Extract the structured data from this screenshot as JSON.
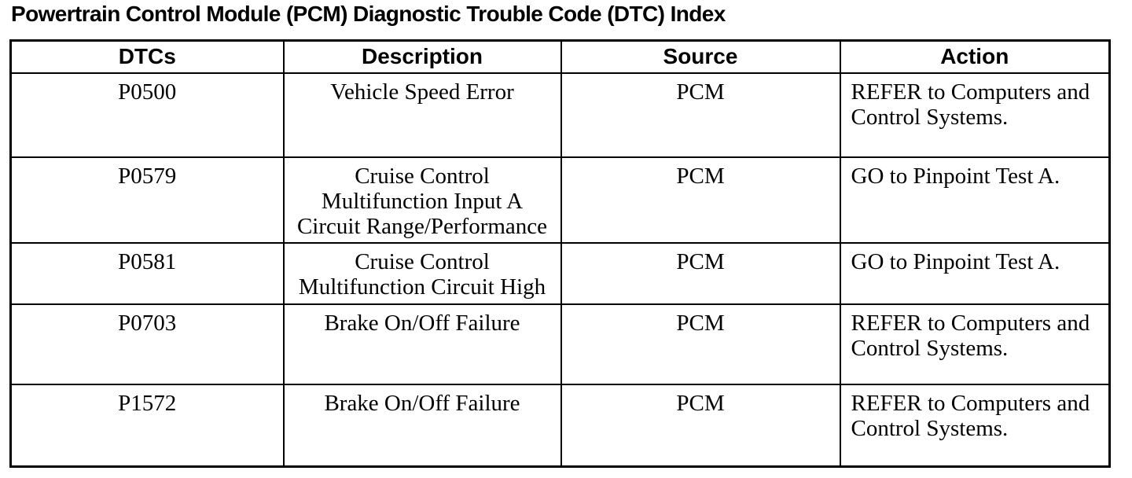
{
  "page": {
    "title": "Powertrain Control Module (PCM) Diagnostic Trouble Code (DTC) Index"
  },
  "colors": {
    "text": "#000000",
    "border": "#000000",
    "background": "#ffffff"
  },
  "table": {
    "headers": [
      "DTCs",
      "Description",
      "Source",
      "Action"
    ],
    "rows": [
      {
        "dtc": "P0500",
        "description": "Vehicle Speed Error",
        "source": "PCM",
        "action": "REFER to Computers and\nControl Systems."
      },
      {
        "dtc": "P0579",
        "description": "Cruise Control\nMultifunction Input A\nCircuit Range/Performance",
        "source": "PCM",
        "action": "GO to Pinpoint Test A."
      },
      {
        "dtc": "P0581",
        "description": "Cruise Control\nMultifunction Circuit High",
        "source": "PCM",
        "action": "GO to Pinpoint Test A."
      },
      {
        "dtc": "P0703",
        "description": "Brake On/Off Failure",
        "source": "PCM",
        "action": "REFER to Computers and\nControl Systems."
      },
      {
        "dtc": "P1572",
        "description": "Brake On/Off Failure",
        "source": "PCM",
        "action": "REFER to Computers and\nControl Systems."
      }
    ]
  }
}
